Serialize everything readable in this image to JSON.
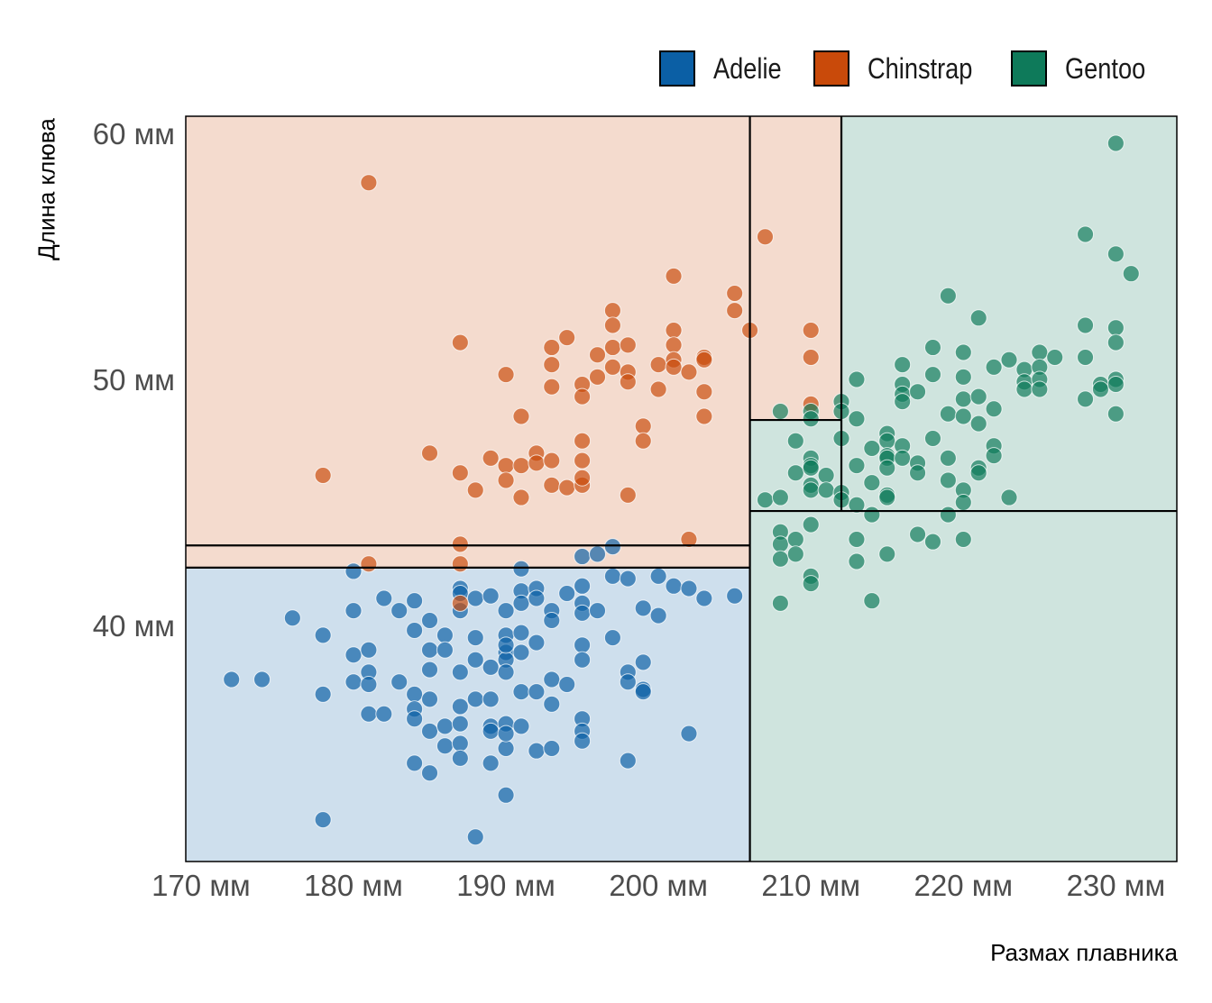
{
  "colors": {
    "Adelie": "#0B5FA5",
    "Chinstrap": "#C94A0A",
    "Gentoo": "#0E7A5A"
  },
  "legend": {
    "items": [
      {
        "label": "Adelie",
        "color": "#0B5FA5"
      },
      {
        "label": "Chinstrap",
        "color": "#C94A0A"
      },
      {
        "label": "Gentoo",
        "color": "#0E7A5A"
      }
    ]
  },
  "chart_data": {
    "type": "scatter",
    "xlabel": "Размах плавника",
    "ylabel": "Длина клюва",
    "xlim": [
      169,
      234
    ],
    "ylim": [
      30.4,
      60.7
    ],
    "x_ticks": [
      170,
      180,
      190,
      200,
      210,
      220,
      230
    ],
    "x_tick_labels": [
      "170 мм",
      "180 мм",
      "190 мм",
      "200 мм",
      "210 мм",
      "220 мм",
      "230 мм"
    ],
    "y_ticks": [
      40,
      50,
      60
    ],
    "y_tick_labels": [
      "40 мм",
      "50 мм",
      "60 мм"
    ],
    "grid": false,
    "legend_position": "top-right",
    "regions": [
      {
        "class": "Chinstrap",
        "x": [
          169,
          206
        ],
        "y": [
          42.35,
          60.7
        ]
      },
      {
        "class": "Adelie",
        "x": [
          169,
          206
        ],
        "y": [
          30.4,
          42.35
        ]
      },
      {
        "class": "Chinstrap",
        "x": [
          206,
          212
        ],
        "y": [
          48.35,
          60.7
        ]
      },
      {
        "class": "Gentoo",
        "x": [
          206,
          212
        ],
        "y": [
          44.65,
          48.35
        ]
      },
      {
        "class": "Gentoo",
        "x": [
          212,
          234
        ],
        "y": [
          44.65,
          60.7
        ]
      },
      {
        "class": "Gentoo",
        "x": [
          206,
          234
        ],
        "y": [
          30.4,
          44.65
        ]
      }
    ],
    "splits": [
      {
        "orientation": "vertical",
        "x": 206,
        "y": [
          30.4,
          60.7
        ]
      },
      {
        "orientation": "vertical",
        "x": 212,
        "y": [
          44.65,
          60.7
        ]
      },
      {
        "orientation": "horizontal",
        "y": 43.25,
        "x": [
          169,
          206
        ]
      },
      {
        "orientation": "horizontal",
        "y": 42.35,
        "x": [
          169,
          206
        ]
      },
      {
        "orientation": "horizontal",
        "y": 48.35,
        "x": [
          206,
          212
        ]
      },
      {
        "orientation": "horizontal",
        "y": 44.65,
        "x": [
          206,
          234
        ]
      }
    ],
    "series": [
      {
        "name": "Adelie",
        "points": [
          [
            172,
            37.8
          ],
          [
            174,
            37.8
          ],
          [
            176,
            40.3
          ],
          [
            178,
            39.6
          ],
          [
            178,
            37.2
          ],
          [
            178,
            32.1
          ],
          [
            180,
            42.2
          ],
          [
            180,
            40.6
          ],
          [
            180,
            38.8
          ],
          [
            180,
            37.7
          ],
          [
            181,
            39.0
          ],
          [
            181,
            38.1
          ],
          [
            181,
            37.6
          ],
          [
            181,
            36.4
          ],
          [
            182,
            41.1
          ],
          [
            182,
            36.4
          ],
          [
            183,
            40.6
          ],
          [
            183,
            37.7
          ],
          [
            184,
            41.0
          ],
          [
            184,
            39.8
          ],
          [
            184,
            37.2
          ],
          [
            184,
            36.6
          ],
          [
            184,
            36.2
          ],
          [
            184,
            34.4
          ],
          [
            185,
            40.2
          ],
          [
            185,
            39.0
          ],
          [
            185,
            38.2
          ],
          [
            185,
            37.0
          ],
          [
            185,
            35.7
          ],
          [
            185,
            34.0
          ],
          [
            186,
            39.6
          ],
          [
            186,
            39.0
          ],
          [
            186,
            35.1
          ],
          [
            186,
            35.9
          ],
          [
            187,
            41.5
          ],
          [
            187,
            40.6
          ],
          [
            187,
            38.1
          ],
          [
            187,
            36.7
          ],
          [
            187,
            36.0
          ],
          [
            187,
            35.2
          ],
          [
            187,
            34.6
          ],
          [
            187,
            41.3
          ],
          [
            188,
            41.1
          ],
          [
            188,
            39.5
          ],
          [
            188,
            38.6
          ],
          [
            188,
            37.0
          ],
          [
            188,
            31.4
          ],
          [
            189,
            41.2
          ],
          [
            189,
            38.3
          ],
          [
            189,
            37.0
          ],
          [
            189,
            35.9
          ],
          [
            189,
            35.7
          ],
          [
            189,
            34.4
          ],
          [
            190,
            40.6
          ],
          [
            190,
            39.6
          ],
          [
            190,
            38.9
          ],
          [
            190,
            38.6
          ],
          [
            190,
            38.1
          ],
          [
            190,
            39.2
          ],
          [
            190,
            35.0
          ],
          [
            190,
            33.1
          ],
          [
            190,
            36.0
          ],
          [
            190,
            35.6
          ],
          [
            191,
            42.3
          ],
          [
            191,
            41.4
          ],
          [
            191,
            40.9
          ],
          [
            191,
            39.7
          ],
          [
            191,
            38.9
          ],
          [
            191,
            37.3
          ],
          [
            191,
            35.9
          ],
          [
            192,
            41.5
          ],
          [
            192,
            41.1
          ],
          [
            192,
            39.3
          ],
          [
            192,
            37.3
          ],
          [
            192,
            34.9
          ],
          [
            193,
            40.6
          ],
          [
            193,
            40.2
          ],
          [
            193,
            37.8
          ],
          [
            193,
            36.8
          ],
          [
            193,
            35.0
          ],
          [
            194,
            41.3
          ],
          [
            194,
            37.6
          ],
          [
            195,
            42.8
          ],
          [
            195,
            41.6
          ],
          [
            195,
            40.9
          ],
          [
            195,
            40.5
          ],
          [
            195,
            39.2
          ],
          [
            195,
            38.6
          ],
          [
            195,
            36.2
          ],
          [
            195,
            35.7
          ],
          [
            195,
            35.3
          ],
          [
            196,
            42.9
          ],
          [
            196,
            40.6
          ],
          [
            197,
            43.2
          ],
          [
            197,
            42.0
          ],
          [
            197,
            39.5
          ],
          [
            198,
            41.9
          ],
          [
            198,
            38.1
          ],
          [
            198,
            37.7
          ],
          [
            198,
            34.5
          ],
          [
            199,
            40.7
          ],
          [
            199,
            38.5
          ],
          [
            199,
            37.4
          ],
          [
            199,
            37.3
          ],
          [
            200,
            42.0
          ],
          [
            200,
            40.4
          ],
          [
            201,
            41.6
          ],
          [
            202,
            41.5
          ],
          [
            202,
            35.6
          ],
          [
            203,
            41.1
          ],
          [
            205,
            41.2
          ]
        ]
      },
      {
        "name": "Chinstrap",
        "points": [
          [
            178,
            46.1
          ],
          [
            181,
            58.0
          ],
          [
            181,
            42.5
          ],
          [
            185,
            47.0
          ],
          [
            187,
            51.5
          ],
          [
            187,
            46.2
          ],
          [
            187,
            43.3
          ],
          [
            187,
            42.5
          ],
          [
            187,
            40.9
          ],
          [
            188,
            45.5
          ],
          [
            189,
            46.8
          ],
          [
            190,
            50.2
          ],
          [
            190,
            46.5
          ],
          [
            190,
            45.9
          ],
          [
            191,
            48.5
          ],
          [
            191,
            46.5
          ],
          [
            191,
            45.2
          ],
          [
            192,
            47.0
          ],
          [
            192,
            46.6
          ],
          [
            193,
            51.3
          ],
          [
            193,
            50.6
          ],
          [
            193,
            49.7
          ],
          [
            193,
            46.7
          ],
          [
            193,
            45.7
          ],
          [
            194,
            51.7
          ],
          [
            194,
            45.6
          ],
          [
            195,
            49.8
          ],
          [
            195,
            49.3
          ],
          [
            195,
            47.5
          ],
          [
            195,
            46.7
          ],
          [
            195,
            45.7
          ],
          [
            195,
            46.0
          ],
          [
            196,
            51.0
          ],
          [
            196,
            50.1
          ],
          [
            197,
            52.8
          ],
          [
            197,
            52.2
          ],
          [
            197,
            51.3
          ],
          [
            197,
            50.5
          ],
          [
            198,
            51.4
          ],
          [
            198,
            50.3
          ],
          [
            198,
            49.9
          ],
          [
            198,
            45.3
          ],
          [
            199,
            48.1
          ],
          [
            199,
            47.5
          ],
          [
            200,
            50.6
          ],
          [
            200,
            49.6
          ],
          [
            201,
            54.2
          ],
          [
            201,
            52.0
          ],
          [
            201,
            51.4
          ],
          [
            201,
            50.8
          ],
          [
            201,
            50.5
          ],
          [
            202,
            50.3
          ],
          [
            202,
            43.5
          ],
          [
            203,
            50.9
          ],
          [
            203,
            50.8
          ],
          [
            203,
            49.5
          ],
          [
            203,
            48.5
          ],
          [
            205,
            53.5
          ],
          [
            205,
            52.8
          ],
          [
            206,
            52.0
          ],
          [
            207,
            55.8
          ],
          [
            210,
            52.0
          ],
          [
            210,
            50.9
          ],
          [
            210,
            49.0
          ]
        ]
      },
      {
        "name": "Gentoo",
        "points": [
          [
            207,
            45.1
          ],
          [
            208,
            48.7
          ],
          [
            208,
            45.2
          ],
          [
            208,
            43.8
          ],
          [
            208,
            43.3
          ],
          [
            208,
            42.7
          ],
          [
            208,
            40.9
          ],
          [
            209,
            47.5
          ],
          [
            209,
            46.2
          ],
          [
            209,
            43.5
          ],
          [
            209,
            42.9
          ],
          [
            210,
            48.7
          ],
          [
            210,
            48.4
          ],
          [
            210,
            46.8
          ],
          [
            210,
            46.5
          ],
          [
            210,
            46.4
          ],
          [
            210,
            45.7
          ],
          [
            210,
            45.5
          ],
          [
            210,
            44.1
          ],
          [
            210,
            42.0
          ],
          [
            210,
            41.7
          ],
          [
            211,
            46.1
          ],
          [
            211,
            45.5
          ],
          [
            212,
            49.1
          ],
          [
            212,
            48.7
          ],
          [
            212,
            45.4
          ],
          [
            212,
            45.1
          ],
          [
            212,
            47.6
          ],
          [
            213,
            50.0
          ],
          [
            213,
            48.4
          ],
          [
            213,
            46.5
          ],
          [
            213,
            44.9
          ],
          [
            213,
            43.5
          ],
          [
            213,
            42.6
          ],
          [
            214,
            47.2
          ],
          [
            214,
            45.8
          ],
          [
            214,
            44.5
          ],
          [
            214,
            41.0
          ],
          [
            215,
            47.8
          ],
          [
            215,
            47.5
          ],
          [
            215,
            46.9
          ],
          [
            215,
            46.8
          ],
          [
            215,
            46.4
          ],
          [
            215,
            45.3
          ],
          [
            215,
            45.2
          ],
          [
            215,
            42.9
          ],
          [
            216,
            50.6
          ],
          [
            216,
            49.8
          ],
          [
            216,
            49.4
          ],
          [
            216,
            49.1
          ],
          [
            216,
            47.3
          ],
          [
            216,
            46.8
          ],
          [
            217,
            49.5
          ],
          [
            217,
            46.6
          ],
          [
            217,
            46.2
          ],
          [
            217,
            43.7
          ],
          [
            218,
            51.3
          ],
          [
            218,
            50.2
          ],
          [
            218,
            47.6
          ],
          [
            218,
            43.4
          ],
          [
            219,
            53.4
          ],
          [
            219,
            48.6
          ],
          [
            219,
            46.8
          ],
          [
            219,
            45.9
          ],
          [
            219,
            44.5
          ],
          [
            220,
            51.1
          ],
          [
            220,
            50.1
          ],
          [
            220,
            49.2
          ],
          [
            220,
            48.5
          ],
          [
            220,
            45.5
          ],
          [
            220,
            45.0
          ],
          [
            220,
            43.5
          ],
          [
            221,
            52.5
          ],
          [
            221,
            49.3
          ],
          [
            221,
            48.2
          ],
          [
            221,
            46.4
          ],
          [
            221,
            46.2
          ],
          [
            222,
            50.5
          ],
          [
            222,
            48.8
          ],
          [
            222,
            47.3
          ],
          [
            222,
            46.9
          ],
          [
            223,
            50.8
          ],
          [
            223,
            45.2
          ],
          [
            224,
            50.4
          ],
          [
            224,
            49.9
          ],
          [
            224,
            49.6
          ],
          [
            225,
            51.1
          ],
          [
            225,
            50.5
          ],
          [
            225,
            50.0
          ],
          [
            225,
            49.6
          ],
          [
            226,
            50.9
          ],
          [
            228,
            55.9
          ],
          [
            228,
            52.2
          ],
          [
            228,
            50.9
          ],
          [
            228,
            49.2
          ],
          [
            229,
            49.8
          ],
          [
            229,
            49.6
          ],
          [
            230,
            59.6
          ],
          [
            230,
            55.1
          ],
          [
            230,
            52.1
          ],
          [
            230,
            51.5
          ],
          [
            230,
            50.0
          ],
          [
            230,
            49.8
          ],
          [
            230,
            48.6
          ],
          [
            231,
            54.3
          ]
        ]
      }
    ]
  }
}
